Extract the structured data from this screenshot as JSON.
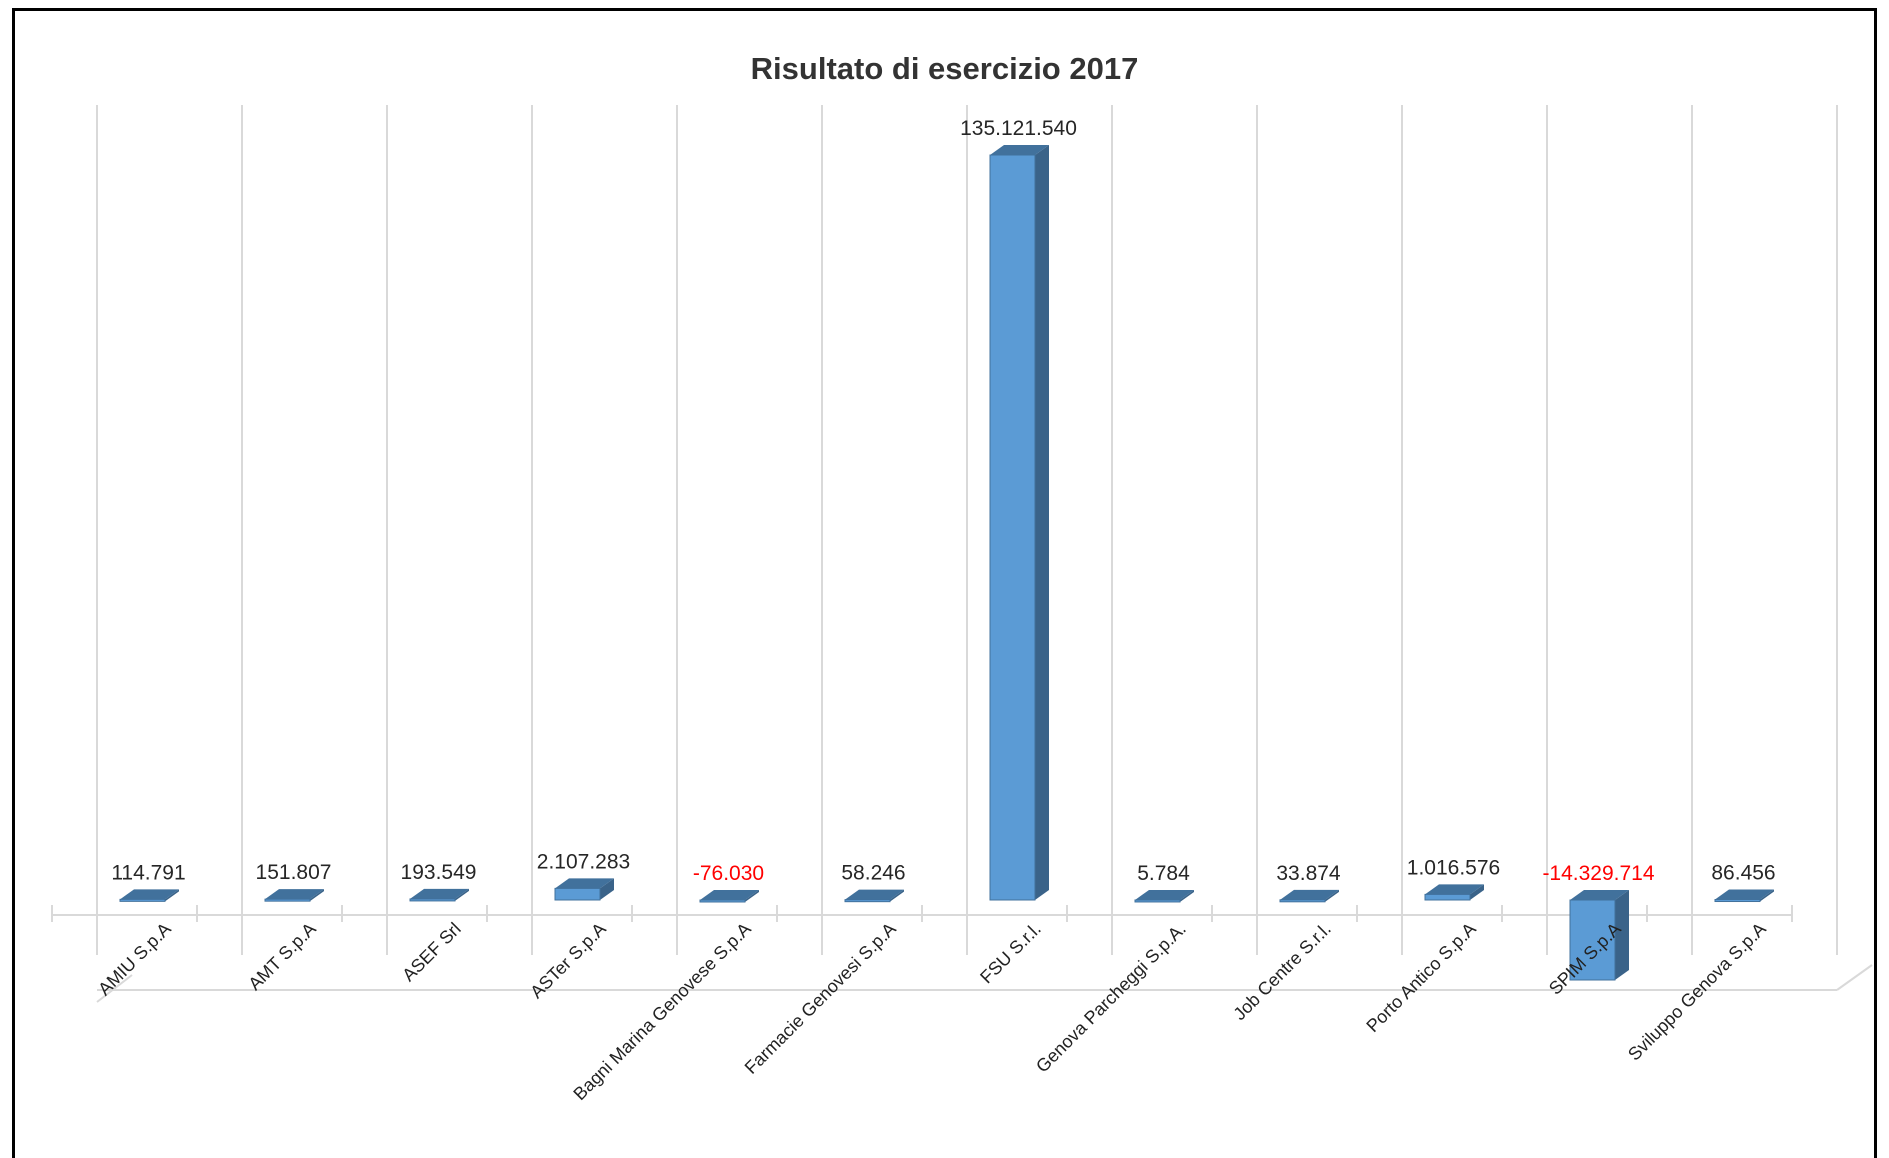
{
  "chart_data": {
    "type": "bar",
    "title": "Risultato di esercizio 2017",
    "categories": [
      "AMIU S.p.A",
      "AMT S.p.A",
      "ASEF Srl",
      "ASTer S.p.A",
      "Bagni Marina Genovese S.p.A",
      "Farmacie Genovesi S.p.A",
      "FSU S.r.l.",
      "Genova Parcheggi  S.p.A.",
      "Job Centre S.r.l.",
      "Porto Antico S.p.A",
      "SPIM S.p.A",
      "Sviluppo Genova S.p.A"
    ],
    "values": [
      114791,
      151807,
      193549,
      2107283,
      -76030,
      58246,
      135121540,
      5784,
      33874,
      1016576,
      -14329714,
      86456
    ],
    "data_labels": [
      "114.791",
      "151.807",
      "193.549",
      "2.107.283",
      "-76.030",
      "58.246",
      "135.121.540",
      "5.784",
      "33.874",
      "1.016.576",
      "-14.329.714",
      "86.456"
    ],
    "ylim": [
      -14329714,
      135121540
    ],
    "xlabel": "",
    "ylabel": "",
    "grid": true,
    "legend": "none",
    "colors": {
      "bar_front": "#5b9bd5",
      "bar_top": "#41719c",
      "bar_side": "#3a6389",
      "grid": "#d9d9d9",
      "label": "#262626",
      "negative_label": "#ff0000"
    }
  }
}
